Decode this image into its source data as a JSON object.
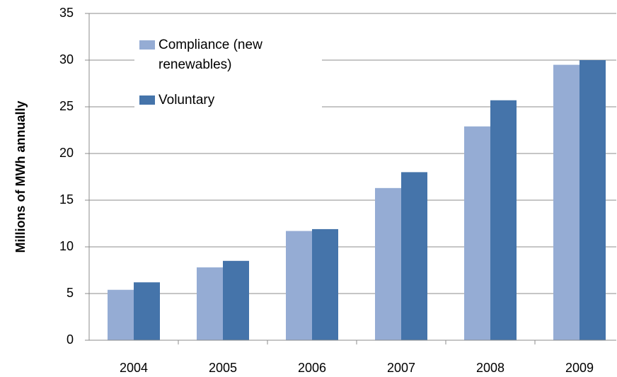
{
  "chart_data": {
    "type": "bar",
    "y_label": "Millions of MWh annually",
    "categories": [
      "2004",
      "2005",
      "2006",
      "2007",
      "2008",
      "2009"
    ],
    "series": [
      {
        "name": "Compliance (new renewables)",
        "color": "#95acd4",
        "values": [
          5.4,
          7.8,
          11.7,
          16.3,
          22.9,
          29.5
        ]
      },
      {
        "name": "Voluntary",
        "color": "#4574aa",
        "values": [
          6.2,
          8.5,
          11.9,
          18.0,
          25.7,
          30.0
        ]
      }
    ],
    "ylim": [
      0,
      35
    ],
    "yticks": [
      0,
      5,
      10,
      15,
      20,
      25,
      30,
      35
    ],
    "grid": true,
    "legend": "upper left"
  }
}
